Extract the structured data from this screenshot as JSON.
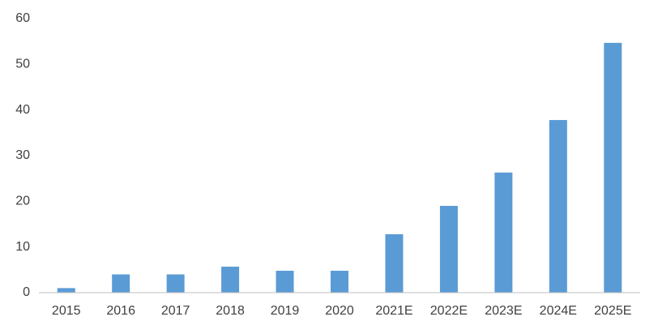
{
  "chart_data": {
    "type": "bar",
    "categories": [
      "2015",
      "2016",
      "2017",
      "2018",
      "2019",
      "2020",
      "2021E",
      "2022E",
      "2023E",
      "2024E",
      "2025E"
    ],
    "values": [
      1.0,
      4.0,
      4.0,
      5.7,
      4.8,
      4.8,
      12.8,
      19.0,
      26.3,
      37.8,
      54.7
    ],
    "color": "#5b9bd5",
    "ylim": [
      0,
      60
    ],
    "yticks": [
      0,
      10,
      20,
      30,
      40,
      50,
      60
    ],
    "grid": false
  }
}
